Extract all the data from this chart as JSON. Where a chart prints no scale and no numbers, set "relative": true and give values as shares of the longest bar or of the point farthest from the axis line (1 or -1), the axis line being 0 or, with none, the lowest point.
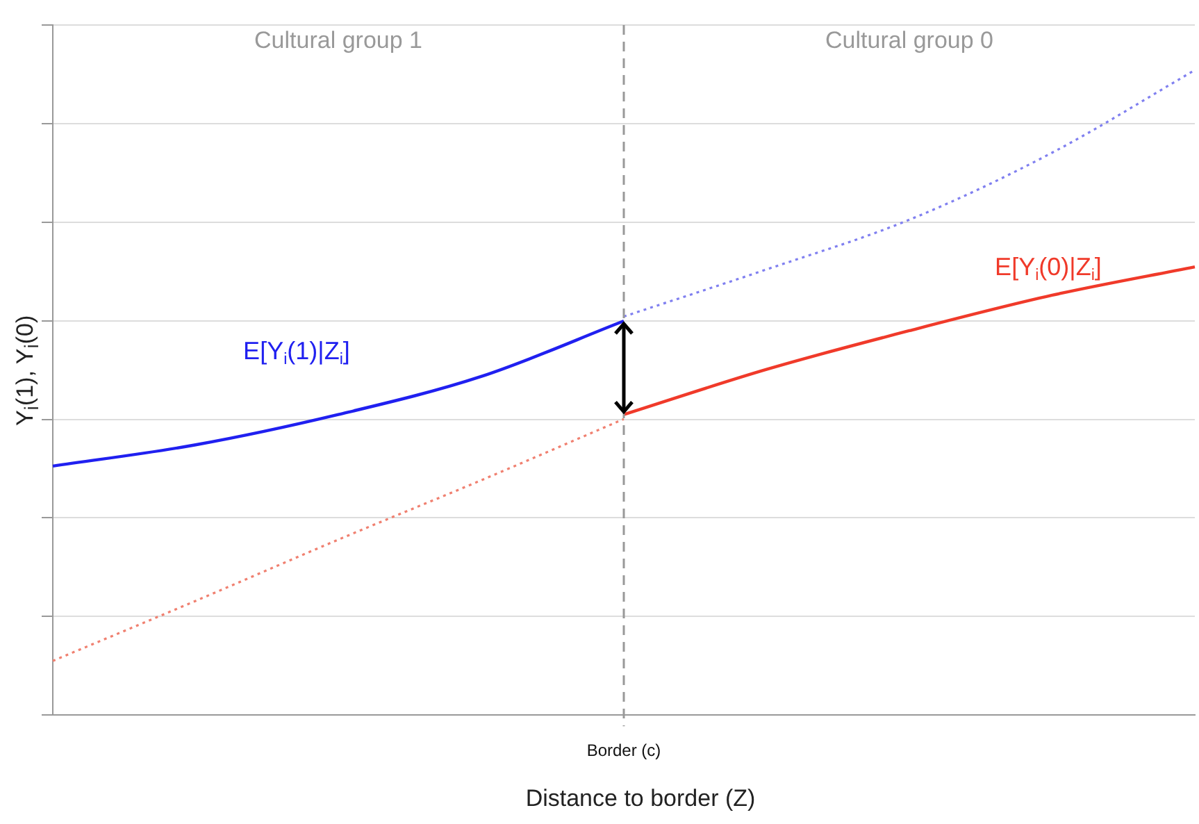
{
  "chart_data": {
    "type": "line",
    "relative": true,
    "xlabel": "Distance to border (Z)",
    "ylabel": "Y$_{i}$(1), Y$_{i}$(0)",
    "categories": [
      null,
      null,
      null,
      null,
      null,
      null,
      null,
      null,
      null
    ],
    "grid": "y",
    "marker": "none",
    "series": [
      {
        "name": "E[Y$_{i}$(1)|Z$_{i}$]",
        "color": "#2020f0",
        "line_style": "solid",
        "values": [
          0.386,
          0.419,
          0.466,
          0.525,
          0.611,
          null,
          null,
          null,
          null
        ]
      },
      {
        "color": "#8080f0",
        "line_style": "dotted",
        "values": [
          null,
          null,
          null,
          null,
          0.618,
          0.691,
          0.768,
          0.872,
          1
        ]
      },
      {
        "color": "#f08070",
        "line_style": "dotted",
        "values": [
          0.084,
          0.177,
          0.272,
          0.364,
          0.459,
          null,
          null,
          null,
          null
        ]
      },
      {
        "name": "E[Y$_{i}$(0)|Z$_{i}$]",
        "color": "#f03a2a",
        "line_style": "solid",
        "values": [
          null,
          null,
          null,
          null,
          0.466,
          0.536,
          0.596,
          0.651,
          0.695
        ]
      }
    ],
    "ref_lines": [
      {
        "axis": "x",
        "label": "Border (c)",
        "color": "#999999",
        "line_style": "dashed"
      }
    ],
    "annotations": [
      "Cultural group 1",
      "Cultural group 0"
    ]
  }
}
